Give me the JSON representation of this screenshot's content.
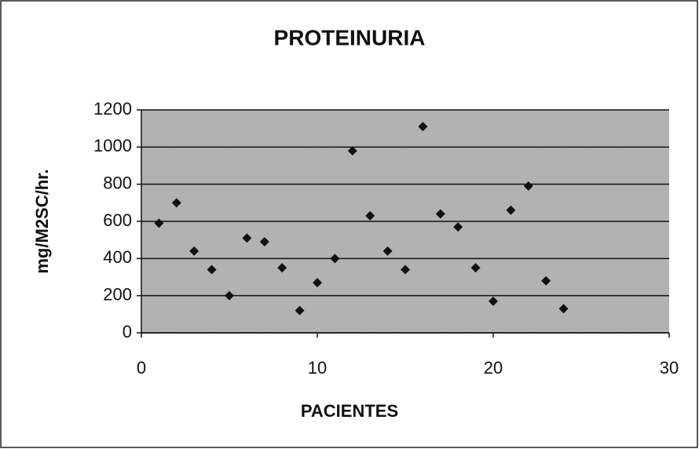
{
  "chart_data": {
    "type": "scatter",
    "title": "PROTEINURIA",
    "x_label": "PACIENTES",
    "y_label": "mg/M2SC/hr.",
    "x": [
      1,
      2,
      3,
      4,
      5,
      6,
      7,
      8,
      9,
      10,
      11,
      12,
      13,
      14,
      15,
      16,
      17,
      18,
      19,
      20,
      21,
      22,
      23,
      24
    ],
    "values": [
      590,
      700,
      440,
      340,
      200,
      510,
      490,
      350,
      120,
      270,
      400,
      980,
      630,
      440,
      340,
      1110,
      640,
      570,
      350,
      170,
      660,
      790,
      280,
      130
    ],
    "color": "#111111",
    "xlim": [
      0,
      30
    ],
    "xticks": [
      0,
      10,
      20,
      30
    ],
    "ylim": [
      0,
      1200
    ],
    "yticks": [
      0,
      200,
      400,
      600,
      800,
      1000,
      1200
    ],
    "grid": true
  }
}
